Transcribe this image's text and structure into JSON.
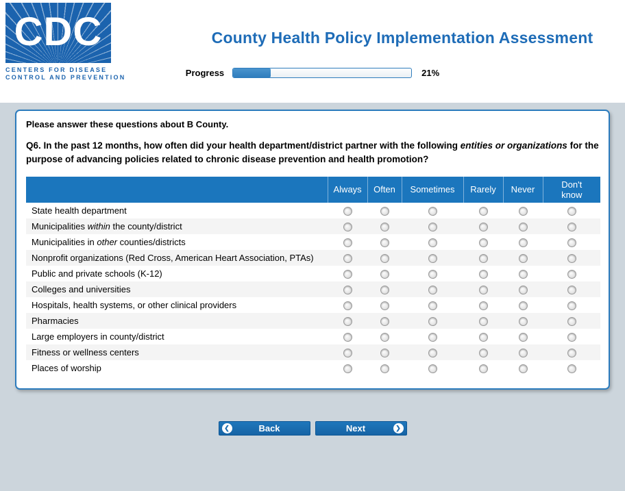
{
  "theme": {
    "brand_blue": "#1b63ae",
    "title_blue": "#1e6cb7",
    "header_row_blue": "#1b76bd",
    "button_blue": "#1a6cb0",
    "page_background": "#ccd5dc",
    "alt_row_gray": "#f4f4f4"
  },
  "logo": {
    "acronym": "CDC",
    "line1": "CENTERS FOR DISEASE",
    "line2": "CONTROL AND PREVENTION"
  },
  "page": {
    "title": "County Health Policy Implementation Assessment"
  },
  "progress": {
    "label": "Progress",
    "percent": 21,
    "percent_text": "21%"
  },
  "survey": {
    "intro": "Please answer these questions about B County.",
    "question_segments": [
      {
        "t": "Q6.",
        "b": true
      },
      {
        "t": " In the past 12 months, how often did your health department/district partner with the following "
      },
      {
        "t": "entities or organizations",
        "i": true
      },
      {
        "t": " for the purpose of advancing policies related to chronic disease prevention and health promotion?"
      }
    ],
    "columns": [
      "Always",
      "Often",
      "Sometimes",
      "Rarely",
      "Never",
      "Don't know"
    ],
    "rows": [
      {
        "segments": [
          {
            "t": "State health department"
          }
        ]
      },
      {
        "segments": [
          {
            "t": "Municipalities "
          },
          {
            "t": "within",
            "i": true
          },
          {
            "t": " the county/district"
          }
        ]
      },
      {
        "segments": [
          {
            "t": "Municipalities in "
          },
          {
            "t": "other",
            "i": true
          },
          {
            "t": " counties/districts"
          }
        ]
      },
      {
        "segments": [
          {
            "t": "Nonprofit organizations (Red Cross, American Heart Association, PTAs)"
          }
        ]
      },
      {
        "segments": [
          {
            "t": "Public and private schools (K-12)"
          }
        ]
      },
      {
        "segments": [
          {
            "t": "Colleges and universities"
          }
        ]
      },
      {
        "segments": [
          {
            "t": "Hospitals, health systems, or other clinical providers"
          }
        ]
      },
      {
        "segments": [
          {
            "t": "Pharmacies"
          }
        ]
      },
      {
        "segments": [
          {
            "t": "Large employers in county/district"
          }
        ]
      },
      {
        "segments": [
          {
            "t": "Fitness or wellness centers"
          }
        ]
      },
      {
        "segments": [
          {
            "t": "Places of worship"
          }
        ]
      }
    ]
  },
  "buttons": {
    "back": "Back",
    "next": "Next",
    "back_arrow": "❮",
    "next_arrow": "❯"
  }
}
